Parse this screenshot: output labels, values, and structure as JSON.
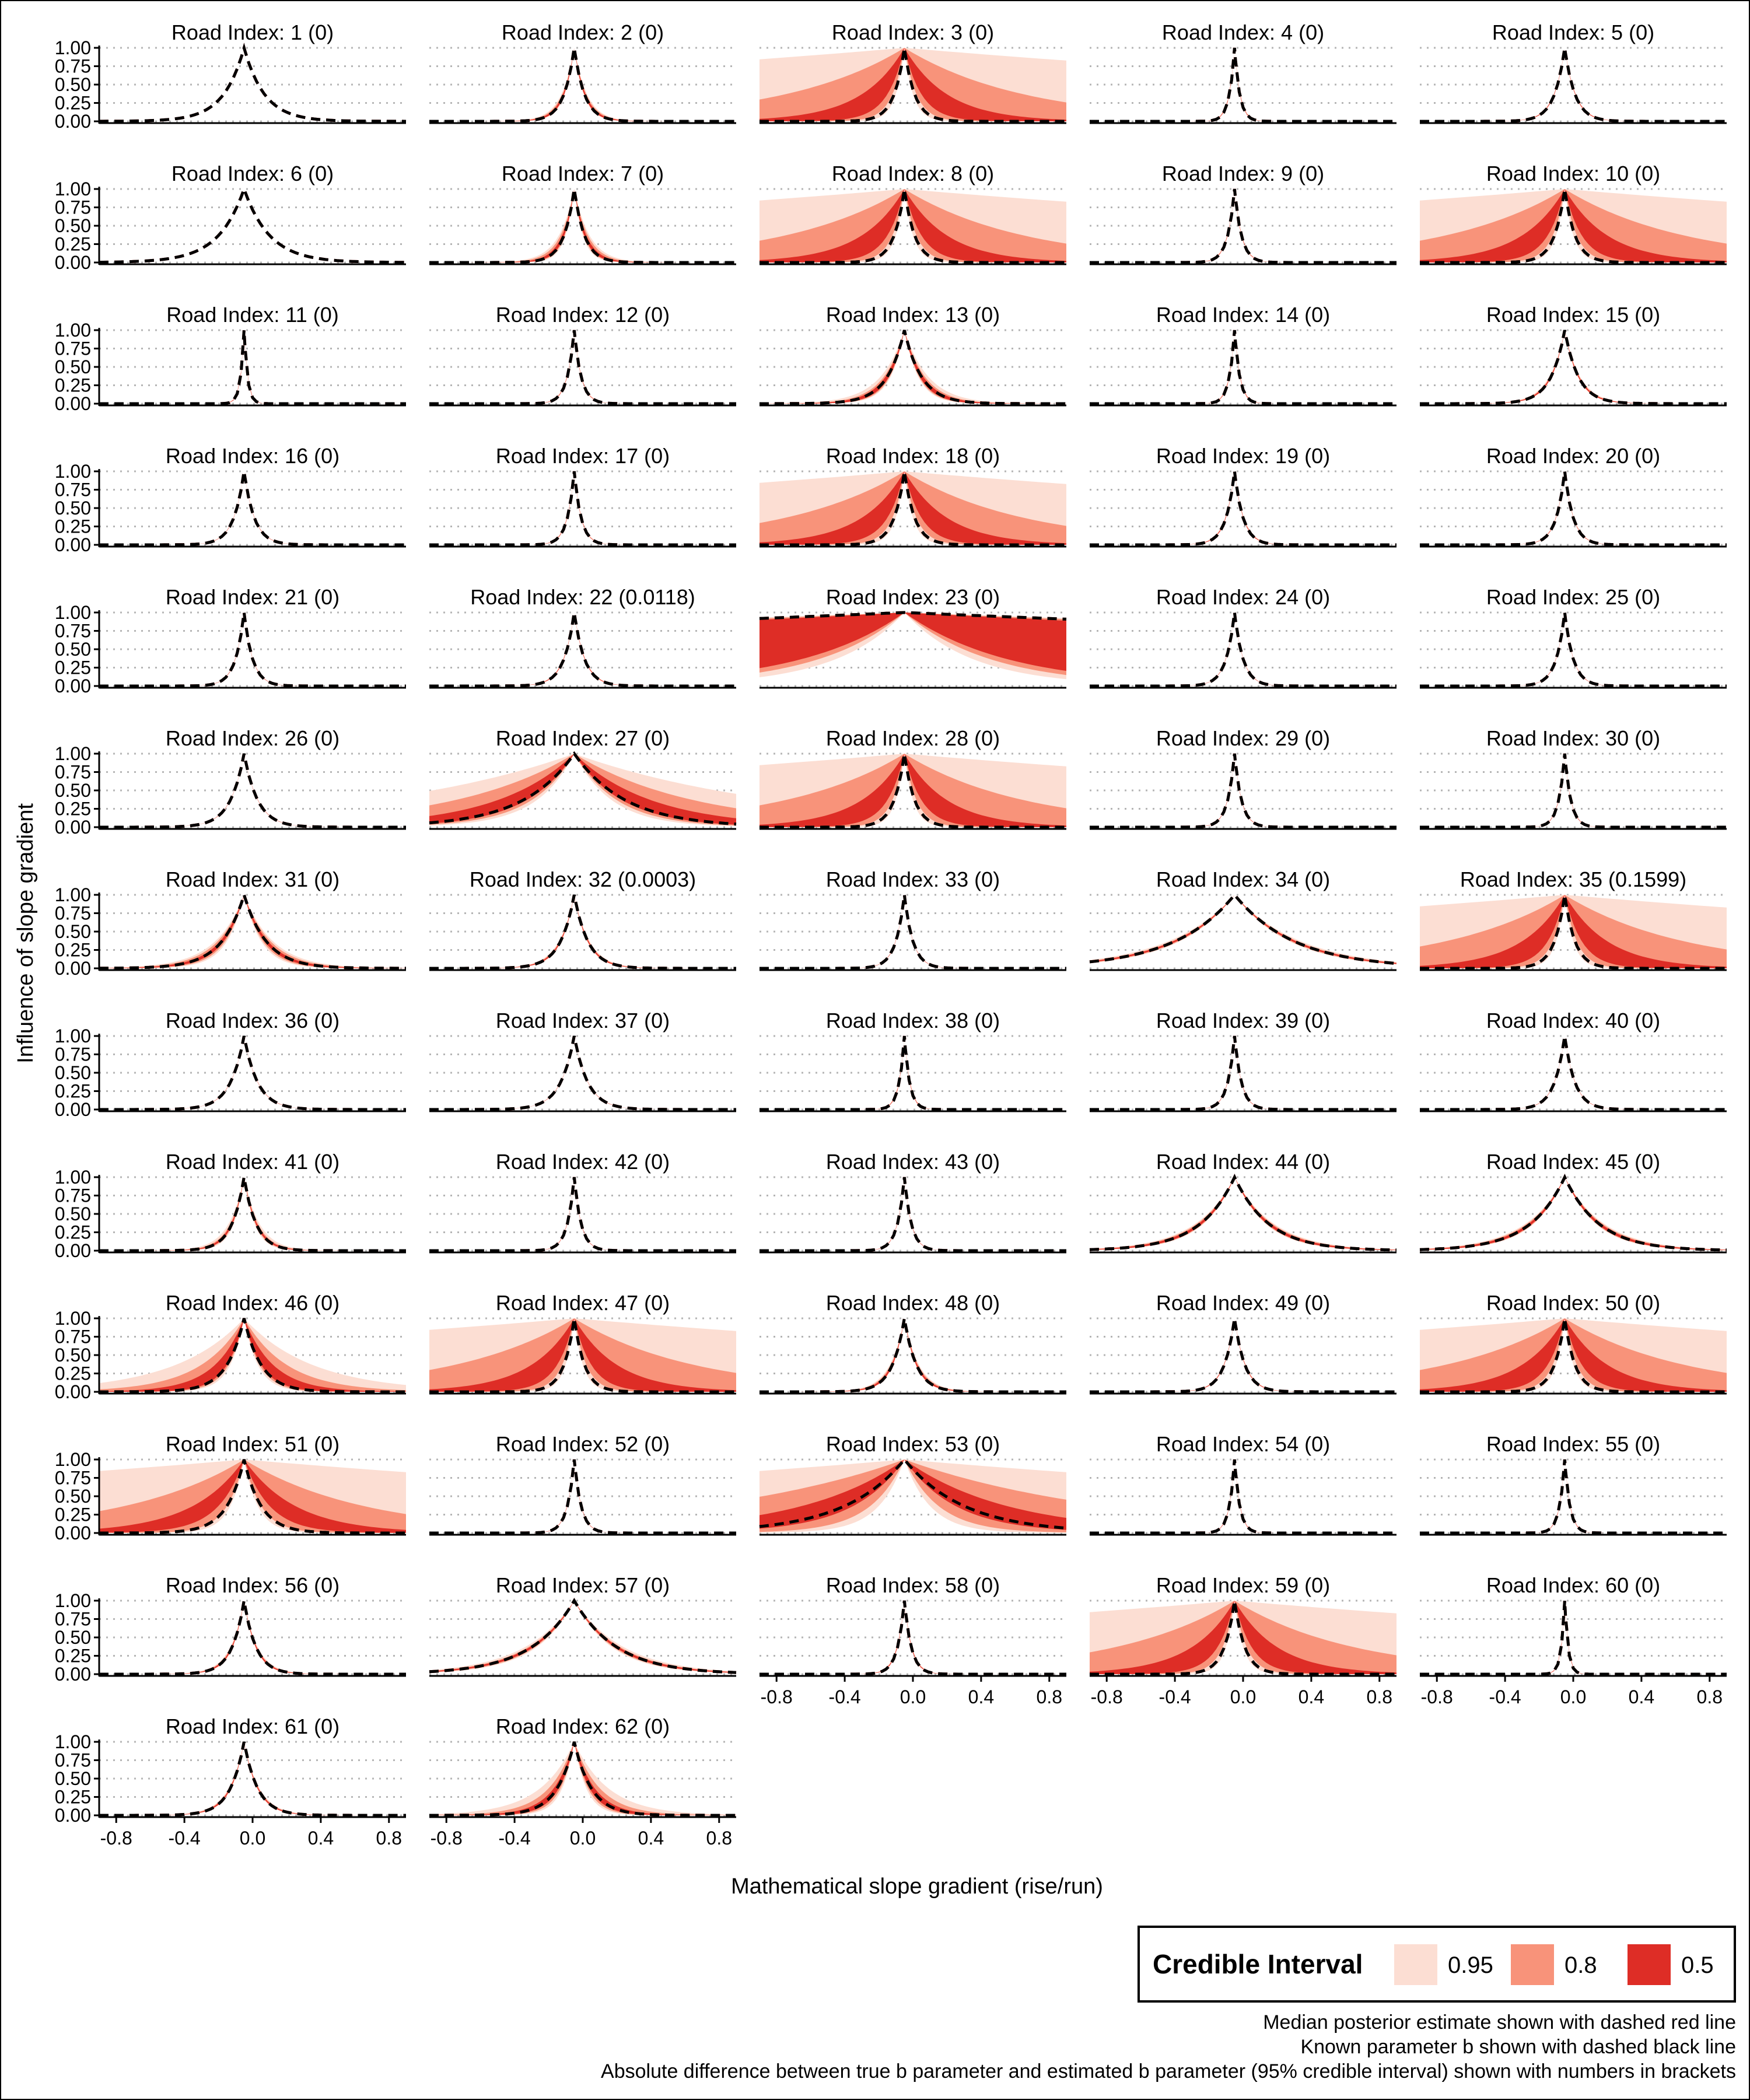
{
  "chart_data": {
    "type": "area",
    "facet_label_prefix": "Road Index: ",
    "xlabel": "Mathematical slope gradient (rise/run)",
    "ylabel": "Influence of slope gradient",
    "xlim": [
      -0.9,
      0.9
    ],
    "ylim": [
      0,
      1
    ],
    "xticks": [
      -0.8,
      -0.4,
      0.0,
      0.4,
      0.8
    ],
    "xtick_labels": [
      "-0.8",
      "-0.4",
      "0.0",
      "0.4",
      "0.8"
    ],
    "yticks": [
      0,
      0.25,
      0.5,
      0.75,
      1.0
    ],
    "ytick_labels": [
      "0.00",
      "0.25",
      "0.50",
      "0.75",
      "1.00"
    ],
    "grid": "dotted horizontal",
    "peak_x": -0.05,
    "legend": {
      "title": "Credible Interval",
      "position": "bottom-right",
      "entries": [
        {
          "label": "0.95",
          "color": "#FCDED3"
        },
        {
          "label": "0.8",
          "color": "#F8937A"
        },
        {
          "label": "0.5",
          "color": "#DE2D26"
        }
      ]
    },
    "median_line_color": "#DE2D26",
    "known_line_color": "#000000",
    "captions": [
      "Median posterior estimate shown with dashed red line",
      "Known parameter b shown with dashed black line",
      "Absolute difference between true b parameter and estimated b parameter (95% credible interval) shown with numbers in brackets"
    ],
    "panels": [
      {
        "index": 1,
        "diff": "0",
        "b": 0.12,
        "ci95": [
          0.12,
          0.12
        ],
        "ci80": [
          0.12,
          0.12
        ],
        "ci50": [
          0.12,
          0.12
        ]
      },
      {
        "index": 2,
        "diff": "0",
        "b": 0.06,
        "ci95": [
          0.055,
          0.075
        ],
        "ci80": [
          0.057,
          0.07
        ],
        "ci50": [
          0.058,
          0.065
        ]
      },
      {
        "index": 3,
        "diff": "0",
        "b": 0.06,
        "ci95": [
          0.05,
          5.0
        ],
        "ci80": [
          0.07,
          0.7
        ],
        "ci50": [
          0.1,
          0.25
        ]
      },
      {
        "index": 4,
        "diff": "0",
        "b": 0.03,
        "ci95": [
          0.03,
          0.033
        ],
        "ci80": [
          0.03,
          0.032
        ],
        "ci50": [
          0.03,
          0.031
        ]
      },
      {
        "index": 5,
        "diff": "0",
        "b": 0.06,
        "ci95": [
          0.06,
          0.065
        ],
        "ci80": [
          0.06,
          0.063
        ],
        "ci50": [
          0.06,
          0.062
        ]
      },
      {
        "index": 6,
        "diff": "0",
        "b": 0.15,
        "ci95": [
          0.15,
          0.15
        ],
        "ci80": [
          0.15,
          0.15
        ],
        "ci50": [
          0.15,
          0.15
        ]
      },
      {
        "index": 7,
        "diff": "0",
        "b": 0.06,
        "ci95": [
          0.05,
          0.09
        ],
        "ci80": [
          0.055,
          0.08
        ],
        "ci50": [
          0.058,
          0.07
        ]
      },
      {
        "index": 8,
        "diff": "0",
        "b": 0.06,
        "ci95": [
          0.05,
          5.0
        ],
        "ci80": [
          0.07,
          0.7
        ],
        "ci50": [
          0.1,
          0.25
        ]
      },
      {
        "index": 9,
        "diff": "0",
        "b": 0.04,
        "ci95": [
          0.04,
          0.043
        ],
        "ci80": [
          0.04,
          0.042
        ],
        "ci50": [
          0.04,
          0.041
        ]
      },
      {
        "index": 10,
        "diff": "0",
        "b": 0.06,
        "ci95": [
          0.05,
          5.0
        ],
        "ci80": [
          0.07,
          0.7
        ],
        "ci50": [
          0.1,
          0.25
        ]
      },
      {
        "index": 11,
        "diff": "0",
        "b": 0.02,
        "ci95": [
          0.02,
          0.022
        ],
        "ci80": [
          0.02,
          0.021
        ],
        "ci50": [
          0.02,
          0.021
        ]
      },
      {
        "index": 12,
        "diff": "0",
        "b": 0.04,
        "ci95": [
          0.04,
          0.043
        ],
        "ci80": [
          0.04,
          0.042
        ],
        "ci50": [
          0.04,
          0.041
        ]
      },
      {
        "index": 13,
        "diff": "0",
        "b": 0.1,
        "ci95": [
          0.08,
          0.14
        ],
        "ci80": [
          0.085,
          0.12
        ],
        "ci50": [
          0.09,
          0.11
        ]
      },
      {
        "index": 14,
        "diff": "0",
        "b": 0.03,
        "ci95": [
          0.03,
          0.033
        ],
        "ci80": [
          0.03,
          0.032
        ],
        "ci50": [
          0.03,
          0.031
        ]
      },
      {
        "index": 15,
        "diff": "0",
        "b": 0.08,
        "ci95": [
          0.075,
          0.09
        ],
        "ci80": [
          0.077,
          0.086
        ],
        "ci50": [
          0.078,
          0.083
        ]
      },
      {
        "index": 16,
        "diff": "0",
        "b": 0.06,
        "ci95": [
          0.06,
          0.062
        ],
        "ci80": [
          0.06,
          0.061
        ],
        "ci50": [
          0.06,
          0.061
        ]
      },
      {
        "index": 17,
        "diff": "0",
        "b": 0.04,
        "ci95": [
          0.04,
          0.043
        ],
        "ci80": [
          0.04,
          0.042
        ],
        "ci50": [
          0.04,
          0.041
        ]
      },
      {
        "index": 18,
        "diff": "0",
        "b": 0.06,
        "ci95": [
          0.05,
          5.0
        ],
        "ci80": [
          0.07,
          0.7
        ],
        "ci50": [
          0.1,
          0.25
        ]
      },
      {
        "index": 19,
        "diff": "0",
        "b": 0.05,
        "ci95": [
          0.05,
          0.055
        ],
        "ci80": [
          0.05,
          0.053
        ],
        "ci50": [
          0.05,
          0.052
        ]
      },
      {
        "index": 20,
        "diff": "0",
        "b": 0.05,
        "ci95": [
          0.05,
          0.053
        ],
        "ci80": [
          0.05,
          0.052
        ],
        "ci50": [
          0.05,
          0.051
        ]
      },
      {
        "index": 21,
        "diff": "0",
        "b": 0.05,
        "ci95": [
          0.05,
          0.052
        ],
        "ci80": [
          0.05,
          0.051
        ],
        "ci50": [
          0.05,
          0.051
        ]
      },
      {
        "index": 22,
        "diff": "0.0118",
        "b": 0.06,
        "ci95": [
          0.06,
          0.065
        ],
        "ci80": [
          0.06,
          0.063
        ],
        "ci50": [
          0.06,
          0.062
        ]
      },
      {
        "index": 23,
        "diff": "0",
        "b": 10.0,
        "ci95": [
          0.4,
          12.0
        ],
        "ci80": [
          0.5,
          10.0
        ],
        "ci50": [
          0.6,
          8.0
        ]
      },
      {
        "index": 24,
        "diff": "0",
        "b": 0.05,
        "ci95": [
          0.05,
          0.052
        ],
        "ci80": [
          0.05,
          0.051
        ],
        "ci50": [
          0.05,
          0.051
        ]
      },
      {
        "index": 25,
        "diff": "0",
        "b": 0.05,
        "ci95": [
          0.05,
          0.052
        ],
        "ci80": [
          0.05,
          0.051
        ],
        "ci50": [
          0.05,
          0.051
        ]
      },
      {
        "index": 26,
        "diff": "0",
        "b": 0.08,
        "ci95": [
          0.08,
          0.082
        ],
        "ci80": [
          0.08,
          0.081
        ],
        "ci50": [
          0.08,
          0.081
        ]
      },
      {
        "index": 27,
        "diff": "0",
        "b": 0.3,
        "ci95": [
          0.22,
          1.2
        ],
        "ci80": [
          0.25,
          0.7
        ],
        "ci50": [
          0.28,
          0.45
        ]
      },
      {
        "index": 28,
        "diff": "0",
        "b": 0.06,
        "ci95": [
          0.05,
          5.0
        ],
        "ci80": [
          0.07,
          0.7
        ],
        "ci50": [
          0.1,
          0.25
        ]
      },
      {
        "index": 29,
        "diff": "0",
        "b": 0.04,
        "ci95": [
          0.04,
          0.042
        ],
        "ci80": [
          0.04,
          0.041
        ],
        "ci50": [
          0.04,
          0.041
        ]
      },
      {
        "index": 30,
        "diff": "0",
        "b": 0.035,
        "ci95": [
          0.035,
          0.037
        ],
        "ci80": [
          0.035,
          0.036
        ],
        "ci50": [
          0.035,
          0.036
        ]
      },
      {
        "index": 31,
        "diff": "0",
        "b": 0.13,
        "ci95": [
          0.1,
          0.17
        ],
        "ci80": [
          0.11,
          0.155
        ],
        "ci50": [
          0.12,
          0.14
        ]
      },
      {
        "index": 32,
        "diff": "0.0003",
        "b": 0.08,
        "ci95": [
          0.075,
          0.09
        ],
        "ci80": [
          0.077,
          0.086
        ],
        "ci50": [
          0.078,
          0.083
        ]
      },
      {
        "index": 33,
        "diff": "0",
        "b": 0.05,
        "ci95": [
          0.05,
          0.052
        ],
        "ci80": [
          0.05,
          0.051
        ],
        "ci50": [
          0.05,
          0.051
        ]
      },
      {
        "index": 34,
        "diff": "0",
        "b": 0.35,
        "ci95": [
          0.32,
          0.39
        ],
        "ci80": [
          0.33,
          0.37
        ],
        "ci50": [
          0.34,
          0.36
        ]
      },
      {
        "index": 35,
        "diff": "0.1599",
        "b": 0.06,
        "ci95": [
          0.05,
          5.0
        ],
        "ci80": [
          0.07,
          0.7
        ],
        "ci50": [
          0.1,
          0.25
        ]
      },
      {
        "index": 36,
        "diff": "0",
        "b": 0.08,
        "ci95": [
          0.08,
          0.082
        ],
        "ci80": [
          0.08,
          0.081
        ],
        "ci50": [
          0.08,
          0.081
        ]
      },
      {
        "index": 37,
        "diff": "0",
        "b": 0.08,
        "ci95": [
          0.08,
          0.082
        ],
        "ci80": [
          0.08,
          0.081
        ],
        "ci50": [
          0.08,
          0.081
        ]
      },
      {
        "index": 38,
        "diff": "0",
        "b": 0.03,
        "ci95": [
          0.03,
          0.033
        ],
        "ci80": [
          0.03,
          0.032
        ],
        "ci50": [
          0.03,
          0.031
        ]
      },
      {
        "index": 39,
        "diff": "0",
        "b": 0.04,
        "ci95": [
          0.04,
          0.042
        ],
        "ci80": [
          0.04,
          0.041
        ],
        "ci50": [
          0.04,
          0.041
        ]
      },
      {
        "index": 40,
        "diff": "0",
        "b": 0.06,
        "ci95": [
          0.06,
          0.062
        ],
        "ci80": [
          0.06,
          0.061
        ],
        "ci50": [
          0.06,
          0.061
        ]
      },
      {
        "index": 41,
        "diff": "0",
        "b": 0.07,
        "ci95": [
          0.06,
          0.09
        ],
        "ci80": [
          0.065,
          0.08
        ],
        "ci50": [
          0.068,
          0.075
        ]
      },
      {
        "index": 42,
        "diff": "0",
        "b": 0.04,
        "ci95": [
          0.04,
          0.042
        ],
        "ci80": [
          0.04,
          0.041
        ],
        "ci50": [
          0.04,
          0.041
        ]
      },
      {
        "index": 43,
        "diff": "0",
        "b": 0.04,
        "ci95": [
          0.04,
          0.042
        ],
        "ci80": [
          0.04,
          0.041
        ],
        "ci50": [
          0.04,
          0.041
        ]
      },
      {
        "index": 44,
        "diff": "0",
        "b": 0.2,
        "ci95": [
          0.18,
          0.23
        ],
        "ci80": [
          0.185,
          0.22
        ],
        "ci50": [
          0.19,
          0.21
        ]
      },
      {
        "index": 45,
        "diff": "0",
        "b": 0.2,
        "ci95": [
          0.18,
          0.23
        ],
        "ci80": [
          0.185,
          0.22
        ],
        "ci50": [
          0.19,
          0.21
        ]
      },
      {
        "index": 46,
        "diff": "0",
        "b": 0.1,
        "ci95": [
          0.08,
          0.4
        ],
        "ci80": [
          0.09,
          0.25
        ],
        "ci50": [
          0.1,
          0.17
        ]
      },
      {
        "index": 47,
        "diff": "0",
        "b": 0.06,
        "ci95": [
          0.05,
          5.0
        ],
        "ci80": [
          0.07,
          0.7
        ],
        "ci50": [
          0.1,
          0.25
        ]
      },
      {
        "index": 48,
        "diff": "0",
        "b": 0.07,
        "ci95": [
          0.065,
          0.085
        ],
        "ci80": [
          0.067,
          0.08
        ],
        "ci50": [
          0.068,
          0.075
        ]
      },
      {
        "index": 49,
        "diff": "0",
        "b": 0.06,
        "ci95": [
          0.06,
          0.065
        ],
        "ci80": [
          0.06,
          0.063
        ],
        "ci50": [
          0.06,
          0.062
        ]
      },
      {
        "index": 50,
        "diff": "0",
        "b": 0.06,
        "ci95": [
          0.05,
          5.0
        ],
        "ci80": [
          0.07,
          0.7
        ],
        "ci50": [
          0.1,
          0.25
        ]
      },
      {
        "index": 51,
        "diff": "0",
        "b": 0.1,
        "ci95": [
          0.08,
          5.0
        ],
        "ci80": [
          0.1,
          0.7
        ],
        "ci50": [
          0.15,
          0.3
        ]
      },
      {
        "index": 52,
        "diff": "0",
        "b": 0.04,
        "ci95": [
          0.04,
          0.042
        ],
        "ci80": [
          0.04,
          0.041
        ],
        "ci50": [
          0.04,
          0.041
        ]
      },
      {
        "index": 53,
        "diff": "0",
        "b": 0.35,
        "ci95": [
          0.15,
          5.0
        ],
        "ci80": [
          0.2,
          1.2
        ],
        "ci50": [
          0.3,
          0.6
        ]
      },
      {
        "index": 54,
        "diff": "0",
        "b": 0.03,
        "ci95": [
          0.03,
          0.032
        ],
        "ci80": [
          0.03,
          0.031
        ],
        "ci50": [
          0.03,
          0.031
        ]
      },
      {
        "index": 55,
        "diff": "0",
        "b": 0.03,
        "ci95": [
          0.03,
          0.032
        ],
        "ci80": [
          0.03,
          0.031
        ],
        "ci50": [
          0.03,
          0.031
        ]
      },
      {
        "index": 56,
        "diff": "0",
        "b": 0.07,
        "ci95": [
          0.065,
          0.08
        ],
        "ci80": [
          0.067,
          0.076
        ],
        "ci50": [
          0.068,
          0.073
        ]
      },
      {
        "index": 57,
        "diff": "0",
        "b": 0.25,
        "ci95": [
          0.22,
          0.29
        ],
        "ci80": [
          0.23,
          0.27
        ],
        "ci50": [
          0.24,
          0.26
        ]
      },
      {
        "index": 58,
        "diff": "0",
        "b": 0.04,
        "ci95": [
          0.04,
          0.045
        ],
        "ci80": [
          0.04,
          0.043
        ],
        "ci50": [
          0.04,
          0.042
        ]
      },
      {
        "index": 59,
        "diff": "0",
        "b": 0.06,
        "ci95": [
          0.05,
          5.0
        ],
        "ci80": [
          0.07,
          0.7
        ],
        "ci50": [
          0.1,
          0.25
        ]
      },
      {
        "index": 60,
        "diff": "0",
        "b": 0.02,
        "ci95": [
          0.02,
          0.022
        ],
        "ci80": [
          0.02,
          0.021
        ],
        "ci50": [
          0.02,
          0.021
        ]
      },
      {
        "index": 61,
        "diff": "0",
        "b": 0.08,
        "ci95": [
          0.075,
          0.09
        ],
        "ci80": [
          0.077,
          0.086
        ],
        "ci50": [
          0.078,
          0.083
        ]
      },
      {
        "index": 62,
        "diff": "0",
        "b": 0.1,
        "ci95": [
          0.07,
          0.2
        ],
        "ci80": [
          0.08,
          0.15
        ],
        "ci50": [
          0.09,
          0.12
        ]
      }
    ]
  }
}
